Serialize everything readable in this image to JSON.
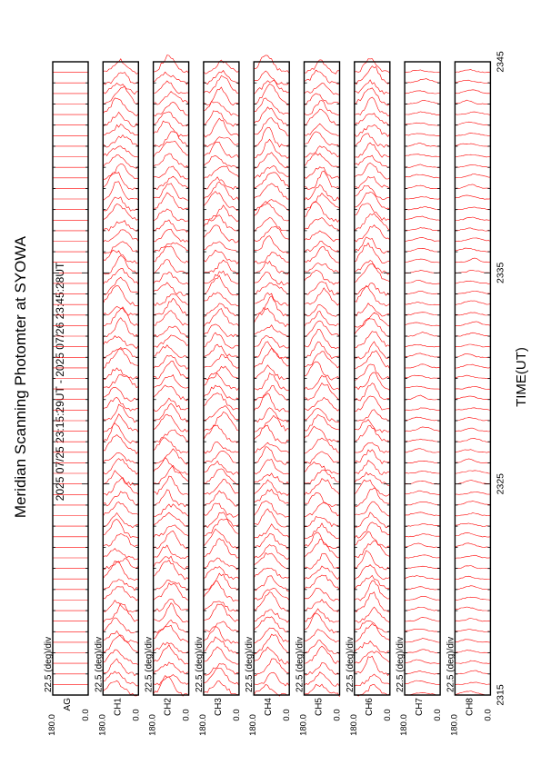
{
  "chart_data": {
    "type": "line",
    "title": "Meridian Scanning Photomter at SYOWA",
    "subtitle": "2025 07/25 23:15:29UT - 2025 07/26 23:45:28UT",
    "xlabel": "TIME(UT)",
    "x_ticks": [
      "2315",
      "2325",
      "2335",
      "2345"
    ],
    "xlim": [
      "2315",
      "2345"
    ],
    "y_ticks": [
      "180.0",
      "0.0"
    ],
    "ylim": [
      0.0,
      180.0
    ],
    "scale_label": "22.5 (deg)/div",
    "grid": false,
    "colors": {
      "trace": "#ff0000",
      "frame": "#000000"
    },
    "panels": [
      {
        "channel": "AG",
        "scans_in_view": 60,
        "profile": "flat"
      },
      {
        "channel": "CH1",
        "scans_in_view": 60,
        "profile": "peaked"
      },
      {
        "channel": "CH2",
        "scans_in_view": 60,
        "profile": "peaked"
      },
      {
        "channel": "CH3",
        "scans_in_view": 60,
        "profile": "peaked"
      },
      {
        "channel": "CH4",
        "scans_in_view": 60,
        "profile": "peaked"
      },
      {
        "channel": "CH5",
        "scans_in_view": 60,
        "profile": "peaked"
      },
      {
        "channel": "CH6",
        "scans_in_view": 60,
        "profile": "peaked"
      },
      {
        "channel": "CH7",
        "scans_in_view": 60,
        "profile": "weak"
      },
      {
        "channel": "CH8",
        "scans_in_view": 60,
        "profile": "weak"
      }
    ]
  }
}
